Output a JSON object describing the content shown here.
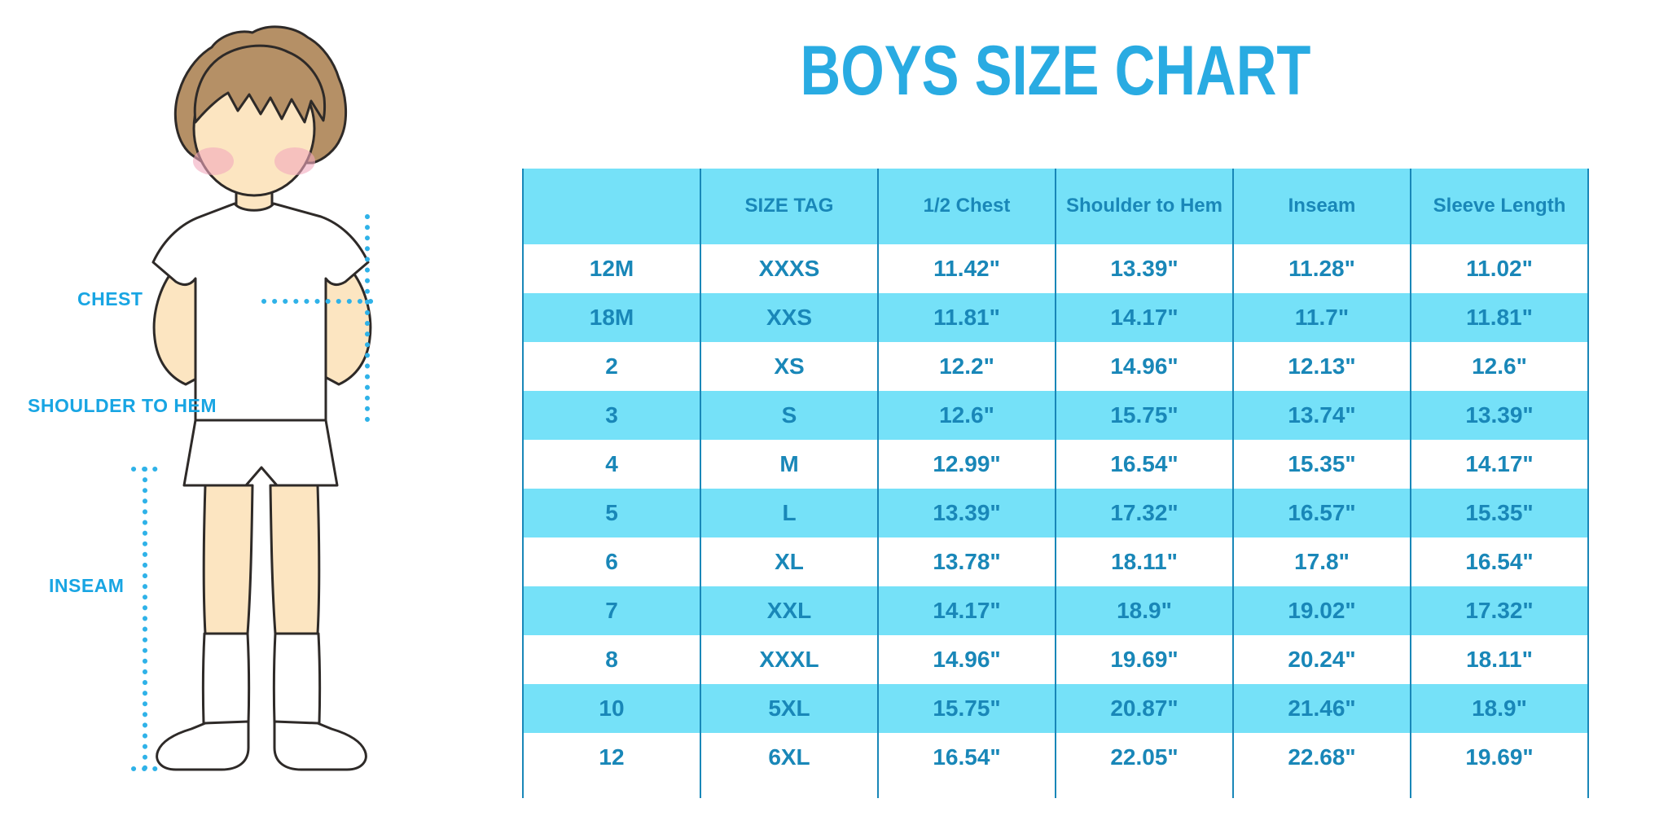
{
  "title": "BOYS SIZE CHART",
  "colors": {
    "title_blue": "#29ABE2",
    "label_blue": "#18A5E3",
    "dotted_blue": "#2FB2E8",
    "table_text": "#1987B8",
    "stripe_cyan": "#75E1F8",
    "line_teal": "#1987B8",
    "skin": "#FCE5C1",
    "hair": "#B59066",
    "blush": "#F2A9BC",
    "outline": "#2E2A28"
  },
  "figure": {
    "description": "cartoon boy in white t-shirt, shorts and knee socks with dotted measurement lines",
    "labels": {
      "chest": "CHEST",
      "shoulder_to_hem": "SHOULDER TO HEM",
      "inseam": "INSEAM"
    }
  },
  "chart_data": {
    "type": "table",
    "title": "BOYS SIZE CHART",
    "units": "inches",
    "striped": true,
    "columns": [
      "",
      "SIZE TAG",
      "1/2 Chest",
      "Shoulder to Hem",
      "Inseam",
      "Sleeve Length"
    ],
    "rows": [
      [
        "12M",
        "XXXS",
        "11.42\"",
        "13.39\"",
        "11.28\"",
        "11.02\""
      ],
      [
        "18M",
        "XXS",
        "11.81\"",
        "14.17\"",
        "11.7\"",
        "11.81\""
      ],
      [
        "2",
        "XS",
        "12.2\"",
        "14.96\"",
        "12.13\"",
        "12.6\""
      ],
      [
        "3",
        "S",
        "12.6\"",
        "15.75\"",
        "13.74\"",
        "13.39\""
      ],
      [
        "4",
        "M",
        "12.99\"",
        "16.54\"",
        "15.35\"",
        "14.17\""
      ],
      [
        "5",
        "L",
        "13.39\"",
        "17.32\"",
        "16.57\"",
        "15.35\""
      ],
      [
        "6",
        "XL",
        "13.78\"",
        "18.11\"",
        "17.8\"",
        "16.54\""
      ],
      [
        "7",
        "XXL",
        "14.17\"",
        "18.9\"",
        "19.02\"",
        "17.32\""
      ],
      [
        "8",
        "XXXL",
        "14.96\"",
        "19.69\"",
        "20.24\"",
        "18.11\""
      ],
      [
        "10",
        "5XL",
        "15.75\"",
        "20.87\"",
        "21.46\"",
        "18.9\""
      ],
      [
        "12",
        "6XL",
        "16.54\"",
        "22.05\"",
        "22.68\"",
        "19.69\""
      ]
    ]
  }
}
